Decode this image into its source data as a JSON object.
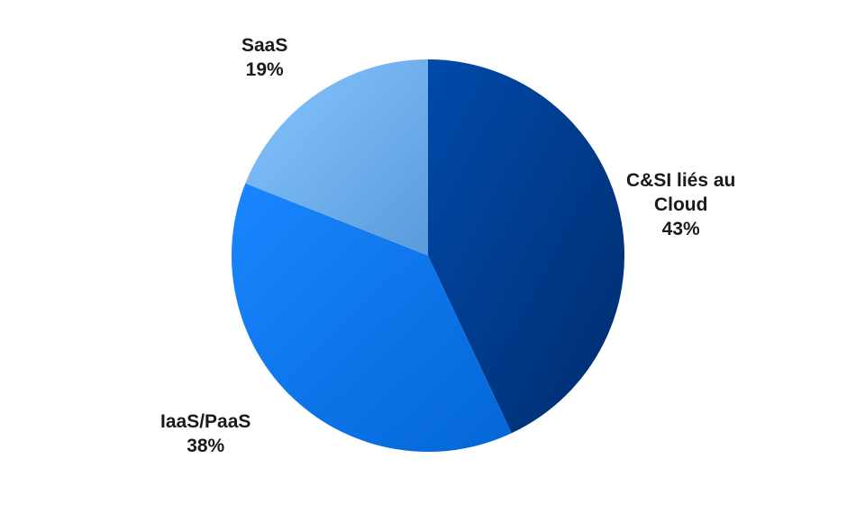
{
  "chart_data": {
    "type": "pie",
    "title": "",
    "slices": [
      {
        "name_lines": [
          "C&SI liés au",
          "Cloud"
        ],
        "value": 43,
        "value_label": "43%",
        "color": "#003A8C"
      },
      {
        "name_lines": [
          "IaaS/PaaS"
        ],
        "value": 38,
        "value_label": "38%",
        "color": "#0A78F2"
      },
      {
        "name_lines": [
          "SaaS"
        ],
        "value": 19,
        "value_label": "19%",
        "color": "#78BCF8"
      }
    ],
    "start_angle": "12 o'clock",
    "direction": "clockwise",
    "legend": "none"
  }
}
